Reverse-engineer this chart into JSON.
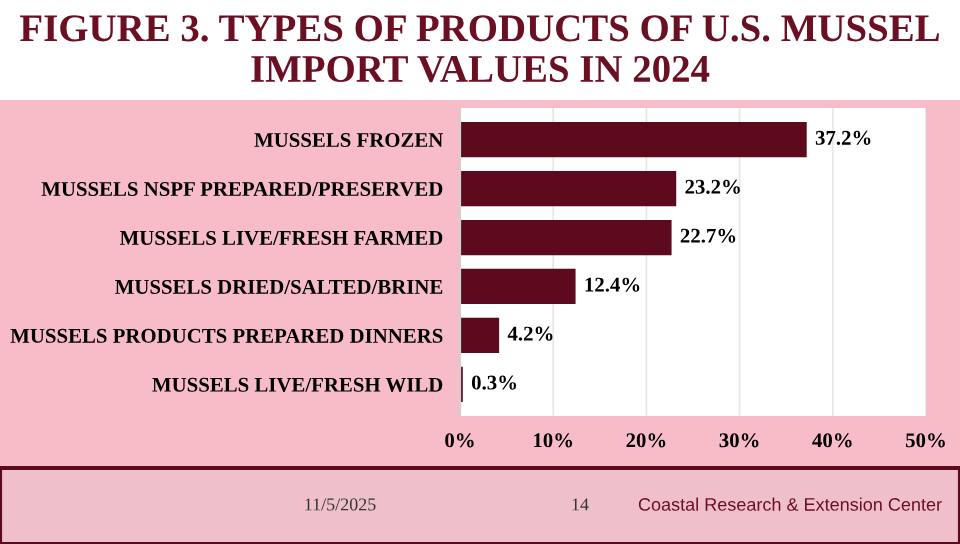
{
  "chart_data": {
    "type": "bar",
    "orientation": "horizontal",
    "title": "FIGURE 3. TYPES OF PRODUCTS OF U.S. MUSSEL IMPORT VALUES IN 2024",
    "categories": [
      "MUSSELS FROZEN",
      "MUSSELS NSPF PREPARED/PRESERVED",
      "MUSSELS LIVE/FRESH FARMED",
      "MUSSELS DRIED/SALTED/BRINE",
      "MUSSELS PRODUCTS PREPARED DINNERS",
      "MUSSELS LIVE/FRESH WILD"
    ],
    "values": [
      37.2,
      23.2,
      22.7,
      12.4,
      4.2,
      0.3
    ],
    "value_labels": [
      "37.2%",
      "23.2%",
      "22.7%",
      "12.4%",
      "4.2%",
      "0.3%"
    ],
    "color": "#5c0a1c",
    "xlim": [
      0,
      50
    ],
    "xticks": [
      {
        "value": 0,
        "label": "0%"
      },
      {
        "value": 10,
        "label": "10%"
      },
      {
        "value": 20,
        "label": "20%"
      },
      {
        "value": 30,
        "label": "30%"
      },
      {
        "value": 40,
        "label": "40%"
      },
      {
        "value": 50,
        "label": "50%"
      }
    ],
    "grid": "x",
    "legend": false,
    "annotations": [
      "11/5/2025",
      "14",
      "Coastal Research & Extension Center"
    ]
  }
}
